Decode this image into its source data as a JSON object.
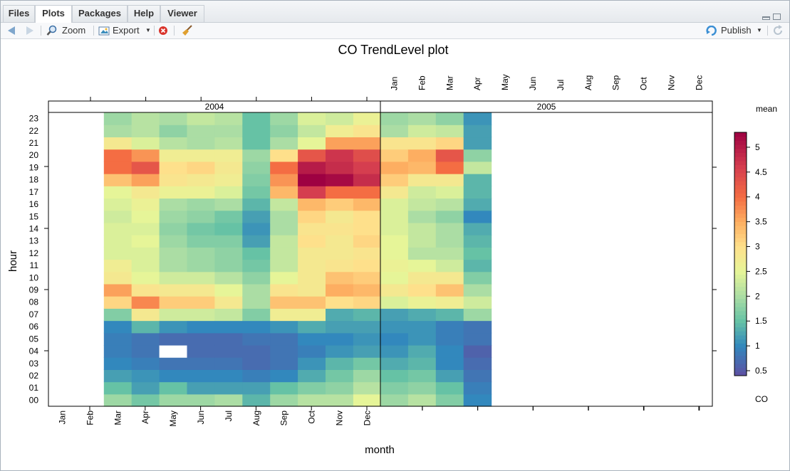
{
  "tabs": [
    {
      "label": "Files",
      "active": false
    },
    {
      "label": "Plots",
      "active": true
    },
    {
      "label": "Packages",
      "active": false
    },
    {
      "label": "Help",
      "active": false
    },
    {
      "label": "Viewer",
      "active": false
    }
  ],
  "toolbar": {
    "zoom_label": "Zoom",
    "export_label": "Export",
    "publish_label": "Publish",
    "icons": [
      "back-arrow-icon",
      "forward-arrow-icon",
      "zoom-icon",
      "export-image-icon",
      "remove-plot-icon",
      "clear-all-broom-icon",
      "publish-icon",
      "refresh-icon"
    ]
  },
  "plot": {
    "title": "CO TrendLevel plot",
    "xlabel": "month",
    "ylabel": "hour",
    "colorbar_title": "mean",
    "colorbar_var": "CO"
  },
  "chart_data": {
    "type": "heatmap",
    "title": "CO TrendLevel plot",
    "xlabel": "month",
    "ylabel": "hour",
    "panels": [
      "2004",
      "2005"
    ],
    "months": [
      "Jan",
      "Feb",
      "Mar",
      "Apr",
      "May",
      "Jun",
      "Jul",
      "Aug",
      "Sep",
      "Oct",
      "Nov",
      "Dec"
    ],
    "hours": [
      "00",
      "01",
      "02",
      "03",
      "04",
      "05",
      "06",
      "07",
      "08",
      "09",
      "10",
      "11",
      "12",
      "13",
      "14",
      "15",
      "16",
      "17",
      "18",
      "19",
      "20",
      "21",
      "22",
      "23"
    ],
    "colorbar": {
      "label": "mean",
      "variable": "CO",
      "ticks": [
        0.5,
        1,
        1.5,
        2,
        2.5,
        3,
        3.5,
        4,
        4.5,
        5
      ],
      "range": [
        0.4,
        5.3
      ]
    },
    "values_2004": {
      "Mar": [
        1.9,
        1.5,
        1.2,
        1.0,
        0.9,
        0.9,
        1.0,
        1.7,
        3.1,
        3.6,
        2.8,
        2.7,
        2.4,
        2.4,
        2.4,
        2.3,
        2.4,
        2.5,
        3.3,
        4.0,
        4.0,
        2.8,
        2.0,
        1.9
      ],
      "Apr": [
        1.6,
        1.2,
        1.1,
        0.9,
        0.8,
        0.8,
        1.4,
        2.8,
        3.8,
        2.9,
        2.5,
        2.4,
        2.4,
        2.5,
        2.4,
        2.5,
        2.6,
        2.8,
        3.6,
        4.3,
        3.7,
        2.4,
        2.1,
        2.1
      ],
      "May": [
        1.9,
        1.5,
        1.0,
        0.8,
        null,
        0.7,
        1.1,
        2.3,
        3.2,
        2.8,
        2.3,
        2.0,
        2.0,
        1.9,
        1.8,
        1.9,
        2.0,
        2.6,
        2.9,
        3.0,
        2.7,
        2.1,
        1.8,
        2.0
      ],
      "Jun": [
        1.9,
        1.2,
        1.0,
        0.8,
        0.7,
        0.7,
        1.0,
        2.3,
        3.2,
        2.8,
        2.3,
        1.9,
        1.9,
        1.7,
        1.6,
        1.8,
        1.9,
        2.6,
        2.8,
        3.1,
        2.7,
        2.0,
        2.0,
        2.2
      ],
      "Jul": [
        2.0,
        1.2,
        1.0,
        0.8,
        0.7,
        0.7,
        1.0,
        2.2,
        2.8,
        2.5,
        2.1,
        1.8,
        1.8,
        1.7,
        1.5,
        1.6,
        2.0,
        2.4,
        2.7,
        2.8,
        2.7,
        2.1,
        2.0,
        2.1
      ],
      "Aug": [
        1.4,
        1.2,
        0.9,
        0.7,
        0.7,
        0.8,
        1.0,
        1.7,
        2.0,
        2.0,
        1.8,
        1.6,
        1.5,
        1.2,
        1.1,
        1.2,
        1.4,
        1.6,
        1.7,
        1.8,
        1.9,
        1.5,
        1.5,
        1.5
      ],
      "Sep": [
        1.9,
        1.5,
        1.0,
        0.8,
        0.8,
        0.8,
        1.1,
        2.7,
        3.3,
        2.9,
        2.5,
        2.2,
        2.2,
        2.2,
        2.0,
        2.0,
        2.2,
        3.4,
        3.7,
        4.0,
        3.0,
        2.0,
        1.8,
        1.9
      ],
      "Oct": [
        2.1,
        1.7,
        1.3,
        1.1,
        0.9,
        1.0,
        1.3,
        2.7,
        3.3,
        2.8,
        2.8,
        2.8,
        2.8,
        3.0,
        2.9,
        3.1,
        3.4,
        4.6,
        5.3,
        5.0,
        4.3,
        2.5,
        2.2,
        2.4
      ],
      "Nov": [
        2.1,
        1.8,
        1.6,
        1.4,
        1.1,
        1.0,
        1.2,
        1.3,
        3.0,
        3.5,
        3.3,
        2.9,
        2.8,
        2.8,
        2.9,
        2.8,
        3.2,
        4.0,
        5.2,
        4.8,
        4.7,
        3.6,
        2.7,
        2.3
      ],
      "Dec": [
        2.5,
        2.1,
        1.9,
        1.6,
        1.2,
        1.1,
        1.2,
        1.4,
        3.1,
        3.4,
        3.2,
        3.0,
        2.9,
        3.1,
        3.0,
        3.0,
        3.4,
        4.0,
        4.8,
        4.6,
        4.4,
        3.6,
        2.9,
        2.6
      ]
    },
    "values_2005": {
      "Jan": [
        1.9,
        1.7,
        1.5,
        1.3,
        1.1,
        1.0,
        1.1,
        1.2,
        2.4,
        2.8,
        2.5,
        2.6,
        2.5,
        2.5,
        2.4,
        2.4,
        2.4,
        2.8,
        3.2,
        3.5,
        3.2,
        2.9,
        2.0,
        1.9
      ],
      "Feb": [
        2.1,
        1.8,
        1.6,
        1.4,
        1.3,
        1.1,
        1.1,
        1.3,
        2.6,
        3.0,
        2.8,
        2.5,
        2.1,
        2.2,
        2.2,
        2.0,
        2.2,
        2.3,
        2.8,
        3.4,
        3.5,
        2.9,
        2.3,
        2.0
      ],
      "Mar": [
        1.7,
        1.5,
        1.2,
        1.0,
        1.0,
        0.9,
        0.9,
        1.4,
        2.7,
        3.3,
        2.8,
        2.3,
        2.1,
        2.0,
        2.0,
        1.8,
        2.1,
        2.4,
        2.8,
        4.0,
        4.3,
        3.1,
        2.2,
        1.8
      ],
      "Apr": [
        1.0,
        0.9,
        0.8,
        0.7,
        0.6,
        0.8,
        0.8,
        1.9,
        2.3,
        2.0,
        1.7,
        1.4,
        1.5,
        1.4,
        1.3,
        1.0,
        1.3,
        1.4,
        1.4,
        2.2,
        1.8,
        1.2,
        1.2,
        1.1
      ]
    }
  }
}
